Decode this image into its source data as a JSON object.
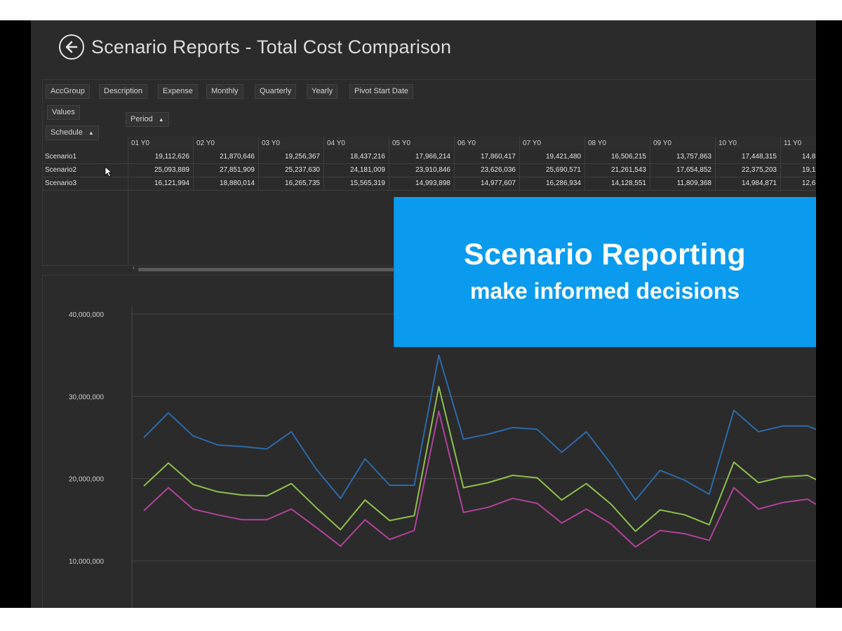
{
  "window": {
    "title": "Scenario Reports - Total Cost Comparison"
  },
  "filter_chips": [
    {
      "label": "AccGroup"
    },
    {
      "label": "Description"
    },
    {
      "label": "Expense"
    },
    {
      "label": "Monthly"
    },
    {
      "label": "Quarterly"
    },
    {
      "label": "Yearly"
    },
    {
      "label": "Pivot Start Date"
    }
  ],
  "values_chip": {
    "label": "Values"
  },
  "schedule_chip": {
    "label": "Schedule",
    "arrow": "▲"
  },
  "period_chip": {
    "label": "Period",
    "arrow": "▲"
  },
  "table": {
    "columns": [
      "01 Y0",
      "02 Y0",
      "03 Y0",
      "04 Y0",
      "05 Y0",
      "06 Y0",
      "07 Y0",
      "08 Y0",
      "09 Y0",
      "10 Y0",
      "11 Y0"
    ],
    "rows": [
      {
        "label": "Scenario1",
        "values": [
          "19,112,626",
          "21,870,646",
          "19,256,367",
          "18,437,216",
          "17,966,214",
          "17,860,417",
          "19,421,480",
          "16,506,215",
          "13,757,863",
          "17,448,315",
          "14,8"
        ]
      },
      {
        "label": "Scenario2",
        "values": [
          "25,093,889",
          "27,851,909",
          "25,237,630",
          "24,181,009",
          "23,910,846",
          "23,626,036",
          "25,690,571",
          "21,261,543",
          "17,654,852",
          "22,375,203",
          "19,1"
        ]
      },
      {
        "label": "Scenario3",
        "values": [
          "16,121,994",
          "18,880,014",
          "16,265,735",
          "15,565,319",
          "14,993,898",
          "14,977,607",
          "16,286,934",
          "14,128,551",
          "11,809,368",
          "14,984,871",
          "12,6"
        ]
      }
    ]
  },
  "overlay": {
    "title": "Scenario Reporting",
    "subtitle": "make informed decisions"
  },
  "chart_data": {
    "type": "line",
    "ylim": [
      0,
      40000000
    ],
    "y_ticks": [
      "10,000,000",
      "20,000,000",
      "30,000,000",
      "40,000,000"
    ],
    "grid": true,
    "series": [
      {
        "color": "#2e6aa8",
        "values": [
          25000000,
          28000000,
          25200000,
          24100000,
          23900000,
          23600000,
          25700000,
          21200000,
          17600000,
          22400000,
          19200000,
          19200000,
          35000000,
          24800000,
          25400000,
          26200000,
          26000000,
          23200000,
          25700000,
          21800000,
          17400000,
          21000000,
          19800000,
          18100000,
          28300000,
          25700000,
          26400000,
          26400000,
          25200000
        ]
      },
      {
        "color": "#8fbf4f",
        "values": [
          19100000,
          21900000,
          19300000,
          18400000,
          18000000,
          17900000,
          19400000,
          16500000,
          13800000,
          17400000,
          14900000,
          15500000,
          31200000,
          18900000,
          19500000,
          20400000,
          20100000,
          17400000,
          19400000,
          16900000,
          13600000,
          16200000,
          15600000,
          14400000,
          22000000,
          19500000,
          20200000,
          20400000,
          18900000
        ]
      },
      {
        "color": "#b0439a",
        "values": [
          16100000,
          18900000,
          16300000,
          15600000,
          15000000,
          15000000,
          16300000,
          14100000,
          11800000,
          15000000,
          12600000,
          13700000,
          28200000,
          15900000,
          16500000,
          17600000,
          17000000,
          14600000,
          16300000,
          14500000,
          11700000,
          13700000,
          13300000,
          12500000,
          18900000,
          16300000,
          17100000,
          17500000,
          15700000
        ]
      }
    ]
  }
}
